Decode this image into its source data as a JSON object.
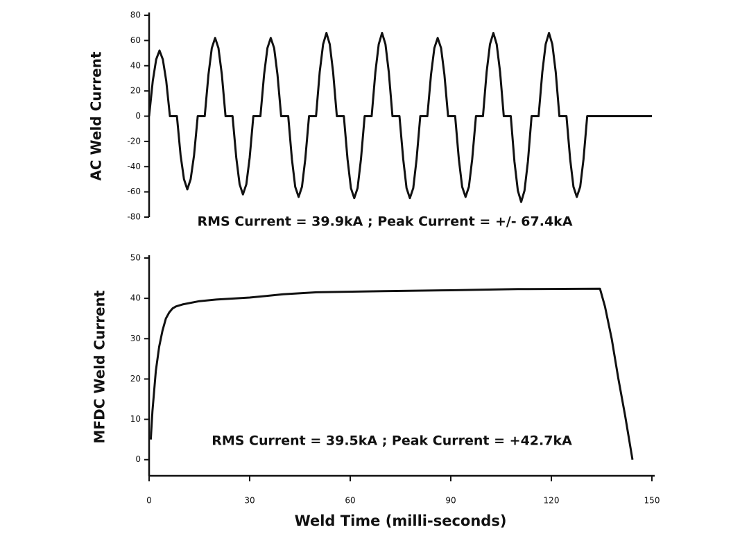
{
  "chart_data": [
    {
      "type": "line",
      "ylabel": "AC Weld Current",
      "annotation": "RMS Current = 39.9kA ; Peak Current = +/- 67.4kA",
      "color": "#111111",
      "xlim": [
        0,
        150
      ],
      "ylim": [
        -80,
        80
      ],
      "yticks": [
        -80,
        -60,
        -40,
        -20,
        0,
        20,
        40,
        60,
        80
      ],
      "x": [
        0,
        1.1,
        2.1,
        3.1,
        4.1,
        5.1,
        6.2,
        8.3,
        9.4,
        10.4,
        11.4,
        12.4,
        13.4,
        14.5,
        16.6,
        17.7,
        18.7,
        19.7,
        20.7,
        21.7,
        22.8,
        24.9,
        26,
        27,
        28,
        29,
        30,
        31.1,
        33.2,
        34.3,
        35.3,
        36.3,
        37.3,
        38.3,
        39.4,
        41.5,
        42.6,
        43.6,
        44.6,
        45.6,
        46.6,
        47.7,
        49.8,
        50.9,
        51.9,
        52.9,
        53.9,
        54.9,
        56,
        58.1,
        59.2,
        60.2,
        61.2,
        62.2,
        63.2,
        64.3,
        66.4,
        67.5,
        68.5,
        69.5,
        70.5,
        71.5,
        72.6,
        74.7,
        75.8,
        76.8,
        77.8,
        78.8,
        79.8,
        80.9,
        83,
        84.1,
        85.1,
        86.1,
        87.1,
        88.1,
        89.2,
        91.3,
        92.4,
        93.4,
        94.4,
        95.4,
        96.4,
        97.5,
        99.6,
        100.7,
        101.7,
        102.7,
        103.7,
        104.7,
        105.8,
        107.9,
        109,
        110,
        111,
        112,
        113,
        114.1,
        116.2,
        117.3,
        118.3,
        119.3,
        120.3,
        121.3,
        122.4,
        124.5,
        125.6,
        126.6,
        127.6,
        128.6,
        129.6,
        130.7,
        150
      ],
      "values": [
        0,
        28,
        45,
        52,
        45,
        28,
        0,
        0,
        -31,
        -50,
        -58,
        -50,
        -31,
        0,
        0,
        33,
        54,
        62,
        54,
        33,
        0,
        0,
        -33,
        -54,
        -62,
        -54,
        -33,
        0,
        0,
        33,
        54,
        62,
        54,
        33,
        0,
        0,
        -34,
        -56,
        -64,
        -56,
        -34,
        0,
        0,
        35,
        57,
        66,
        57,
        35,
        0,
        0,
        -34,
        -57,
        -65,
        -57,
        -34,
        0,
        0,
        35,
        57,
        66,
        57,
        35,
        0,
        0,
        -34,
        -57,
        -65,
        -57,
        -34,
        0,
        0,
        33,
        54,
        62,
        54,
        33,
        0,
        0,
        -34,
        -56,
        -64,
        -56,
        -34,
        0,
        0,
        35,
        57,
        66,
        57,
        35,
        0,
        0,
        -36,
        -59,
        -68,
        -59,
        -36,
        0,
        0,
        35,
        57,
        66,
        57,
        35,
        0,
        0,
        -34,
        -56,
        -64,
        -56,
        -34,
        0,
        0
      ]
    },
    {
      "type": "line",
      "ylabel": "MFDC Weld Current",
      "xlabel": "Weld Time (milli-seconds)",
      "annotation": "RMS Current = 39.5kA ; Peak Current = +42.7kA",
      "color": "#111111",
      "xlim": [
        0,
        150
      ],
      "xticks": [
        0,
        30,
        60,
        90,
        120,
        150
      ],
      "ylim": [
        -4,
        50
      ],
      "yticks": [
        0,
        10,
        20,
        30,
        40,
        50
      ],
      "x": [
        0.5,
        1,
        2,
        3,
        4,
        5,
        6,
        7,
        8,
        10,
        15,
        20,
        30,
        40,
        50,
        70,
        90,
        110,
        134.5,
        136,
        138,
        140,
        142,
        144.2
      ],
      "values": [
        5,
        12,
        22,
        28,
        32,
        35,
        36.5,
        37.5,
        38,
        38.5,
        39.3,
        39.7,
        40.2,
        41,
        41.5,
        41.8,
        42,
        42.3,
        42.4,
        38,
        30,
        20,
        11,
        0
      ]
    }
  ]
}
